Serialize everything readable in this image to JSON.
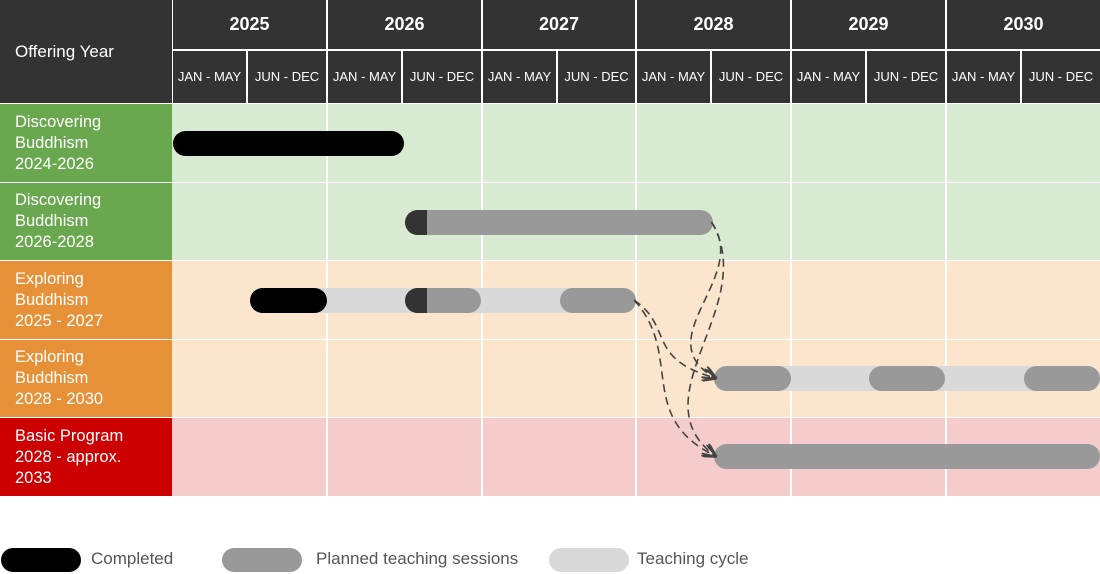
{
  "header": {
    "corner_label": "Offering Year",
    "years": [
      "2025",
      "2026",
      "2027",
      "2028",
      "2029",
      "2030"
    ],
    "halves": [
      "JAN - MAY",
      "JUN - DEC"
    ]
  },
  "rows": [
    {
      "label": [
        "Discovering",
        "Buddhism",
        "2024-2026"
      ],
      "label_color": "#6aa84f",
      "bg_color": "#d9ead3"
    },
    {
      "label": [
        "Discovering",
        "Buddhism",
        "2026-2028"
      ],
      "label_color": "#6aa84f",
      "bg_color": "#d9ead3"
    },
    {
      "label": [
        "Exploring",
        "Buddhism",
        "2025 - 2027"
      ],
      "label_color": "#e69138",
      "bg_color": "#fce5cd"
    },
    {
      "label": [
        "Exploring",
        "Buddhism",
        "2028 - 2030"
      ],
      "label_color": "#e69138",
      "bg_color": "#fce5cd"
    },
    {
      "label": [
        "Basic Program",
        "2028 - approx.",
        "2033"
      ],
      "label_color": "#cc0000",
      "bg_color": "#f4cccc"
    }
  ],
  "bar_types": {
    "completed": "#000000",
    "planned": "#999999",
    "cycle": "#d9d9d9",
    "completed_dark": "#333333"
  },
  "timeline_bars": [
    {
      "row": 0,
      "type": "completed",
      "start": 0.0,
      "end": 1.5
    },
    {
      "row": 1,
      "type": "planned",
      "start": 1.5,
      "end": 3.5
    },
    {
      "row": 1,
      "type": "completed_dark",
      "start": 1.5,
      "end": 1.65
    },
    {
      "row": 2,
      "type": "cycle",
      "start": 0.5,
      "end": 3.0
    },
    {
      "row": 2,
      "type": "completed",
      "start": 0.5,
      "end": 1.0
    },
    {
      "row": 2,
      "type": "planned",
      "start": 1.5,
      "end": 2.0
    },
    {
      "row": 2,
      "type": "completed_dark",
      "start": 1.5,
      "end": 1.65
    },
    {
      "row": 2,
      "type": "planned",
      "start": 2.5,
      "end": 3.0
    },
    {
      "row": 3,
      "type": "cycle",
      "start": 3.5,
      "end": 6.0
    },
    {
      "row": 3,
      "type": "planned",
      "start": 3.5,
      "end": 4.0
    },
    {
      "row": 3,
      "type": "planned",
      "start": 4.5,
      "end": 5.0
    },
    {
      "row": 3,
      "type": "planned",
      "start": 5.5,
      "end": 6.0
    },
    {
      "row": 4,
      "type": "planned",
      "start": 3.5,
      "end": 6.0
    }
  ],
  "arrows": [
    {
      "from_row": 1,
      "from_end": 3.5,
      "to_row": 3,
      "to_start": 3.5
    },
    {
      "from_row": 1,
      "from_end": 3.5,
      "to_row": 4,
      "to_start": 3.5
    },
    {
      "from_row": 2,
      "from_end": 3.0,
      "to_row": 3,
      "to_start": 3.5
    },
    {
      "from_row": 2,
      "from_end": 3.0,
      "to_row": 4,
      "to_start": 3.5
    }
  ],
  "legend": [
    {
      "label": "Completed",
      "type": "completed"
    },
    {
      "label": "Planned teaching sessions",
      "type": "planned"
    },
    {
      "label": "Teaching cycle",
      "type": "cycle"
    }
  ]
}
